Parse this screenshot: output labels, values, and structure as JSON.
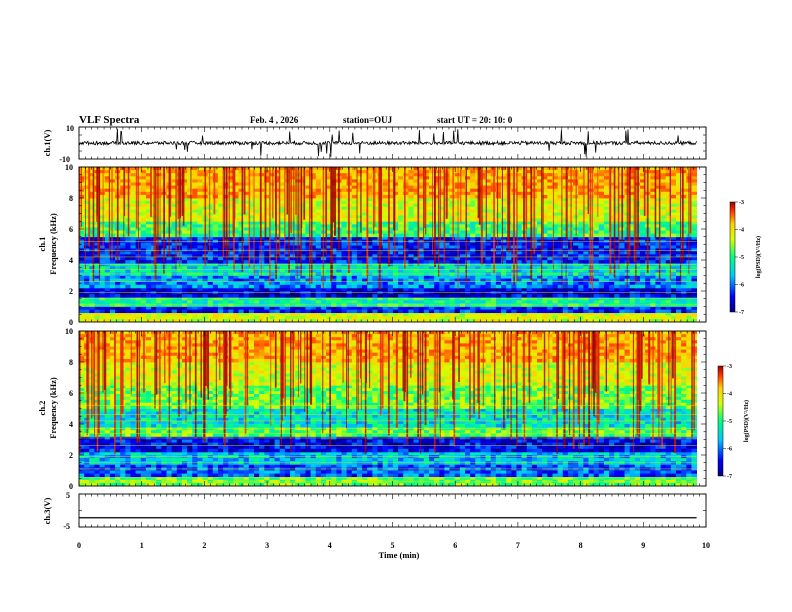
{
  "header": {
    "title": "VLF Spectra",
    "date": "Feb. 4 , 2026",
    "station": "station=OUJ",
    "start": "start UT =  20: 10: 0"
  },
  "chart_data": [
    {
      "type": "line",
      "panel": "ch1-waveform",
      "ylabel": "ch.1(V)",
      "ylim": [
        -10,
        10
      ],
      "yticks": [
        "10",
        "-10"
      ],
      "xlim": [
        0,
        10
      ],
      "baseline": 0,
      "series": [
        {
          "values_description_free": true,
          "level": 0
        }
      ]
    },
    {
      "type": "heatmap",
      "panel": "ch1-spectrogram",
      "ylabel_line1": "ch.1",
      "ylabel_line2": "Frequency (kHz)",
      "ylim": [
        0,
        10
      ],
      "yticks": [
        "0",
        "2",
        "4",
        "6",
        "8",
        "10"
      ],
      "xlim": [
        0,
        9.85
      ],
      "colorbar": {
        "label": "log(PSD)(V²/Hz)",
        "range": [
          -7,
          -3
        ],
        "ticks": [
          "-3",
          "-4",
          "-5",
          "-6",
          "-7"
        ]
      },
      "bands": [
        {
          "from": 0,
          "to": 0.6,
          "level": -4.6
        },
        {
          "from": 0.6,
          "to": 1.0,
          "level": -6.4
        },
        {
          "from": 1.0,
          "to": 1.6,
          "level": -5.4
        },
        {
          "from": 1.6,
          "to": 2.2,
          "level": -6.6
        },
        {
          "from": 2.2,
          "to": 3.0,
          "level": -6.0
        },
        {
          "from": 3.0,
          "to": 3.8,
          "level": -5.6
        },
        {
          "from": 3.8,
          "to": 5.5,
          "level": -6.4
        },
        {
          "from": 5.5,
          "to": 6.5,
          "level": -5.2
        },
        {
          "from": 6.5,
          "to": 8.0,
          "level": -4.6
        },
        {
          "from": 8.0,
          "to": 10.0,
          "level": -4.1
        }
      ]
    },
    {
      "type": "heatmap",
      "panel": "ch2-spectrogram",
      "ylabel_line1": "ch.2",
      "ylabel_line2": "Frequency (kHz)",
      "ylim": [
        0,
        10
      ],
      "yticks": [
        "0",
        "2",
        "4",
        "6",
        "8",
        "10"
      ],
      "xlim": [
        0,
        9.85
      ],
      "colorbar": {
        "label": "log(PSD)(V²/Hz)",
        "range": [
          -7,
          -3
        ],
        "ticks": [
          "-3",
          "-4",
          "-5",
          "-6",
          "-7"
        ]
      },
      "bands": [
        {
          "from": 0,
          "to": 0.6,
          "level": -5.0
        },
        {
          "from": 0.6,
          "to": 1.4,
          "level": -6.2
        },
        {
          "from": 1.4,
          "to": 2.2,
          "level": -5.8
        },
        {
          "from": 2.2,
          "to": 3.2,
          "level": -6.5
        },
        {
          "from": 3.2,
          "to": 3.8,
          "level": -5.1
        },
        {
          "from": 3.8,
          "to": 5.0,
          "level": -5.6
        },
        {
          "from": 5.0,
          "to": 6.5,
          "level": -5.0
        },
        {
          "from": 6.5,
          "to": 8.0,
          "level": -4.6
        },
        {
          "from": 8.0,
          "to": 10.0,
          "level": -4.1
        }
      ]
    },
    {
      "type": "line",
      "panel": "ch3-waveform",
      "ylabel": "ch.3(V)",
      "ylim": [
        -5,
        5
      ],
      "yticks": [
        "5",
        "-5"
      ],
      "xlim": [
        0,
        10
      ],
      "series": [
        {
          "level": -2.2
        }
      ]
    }
  ],
  "xaxis": {
    "label": "Time (min)",
    "ticks": [
      "0",
      "1",
      "2",
      "3",
      "4",
      "5",
      "6",
      "7",
      "8",
      "9",
      "10"
    ],
    "range": [
      0,
      10
    ]
  },
  "colors": {
    "scale": [
      "#00007f",
      "#0000ff",
      "#00c8ff",
      "#00ff80",
      "#d4ff00",
      "#ffd000",
      "#ff3000",
      "#a00000"
    ]
  }
}
